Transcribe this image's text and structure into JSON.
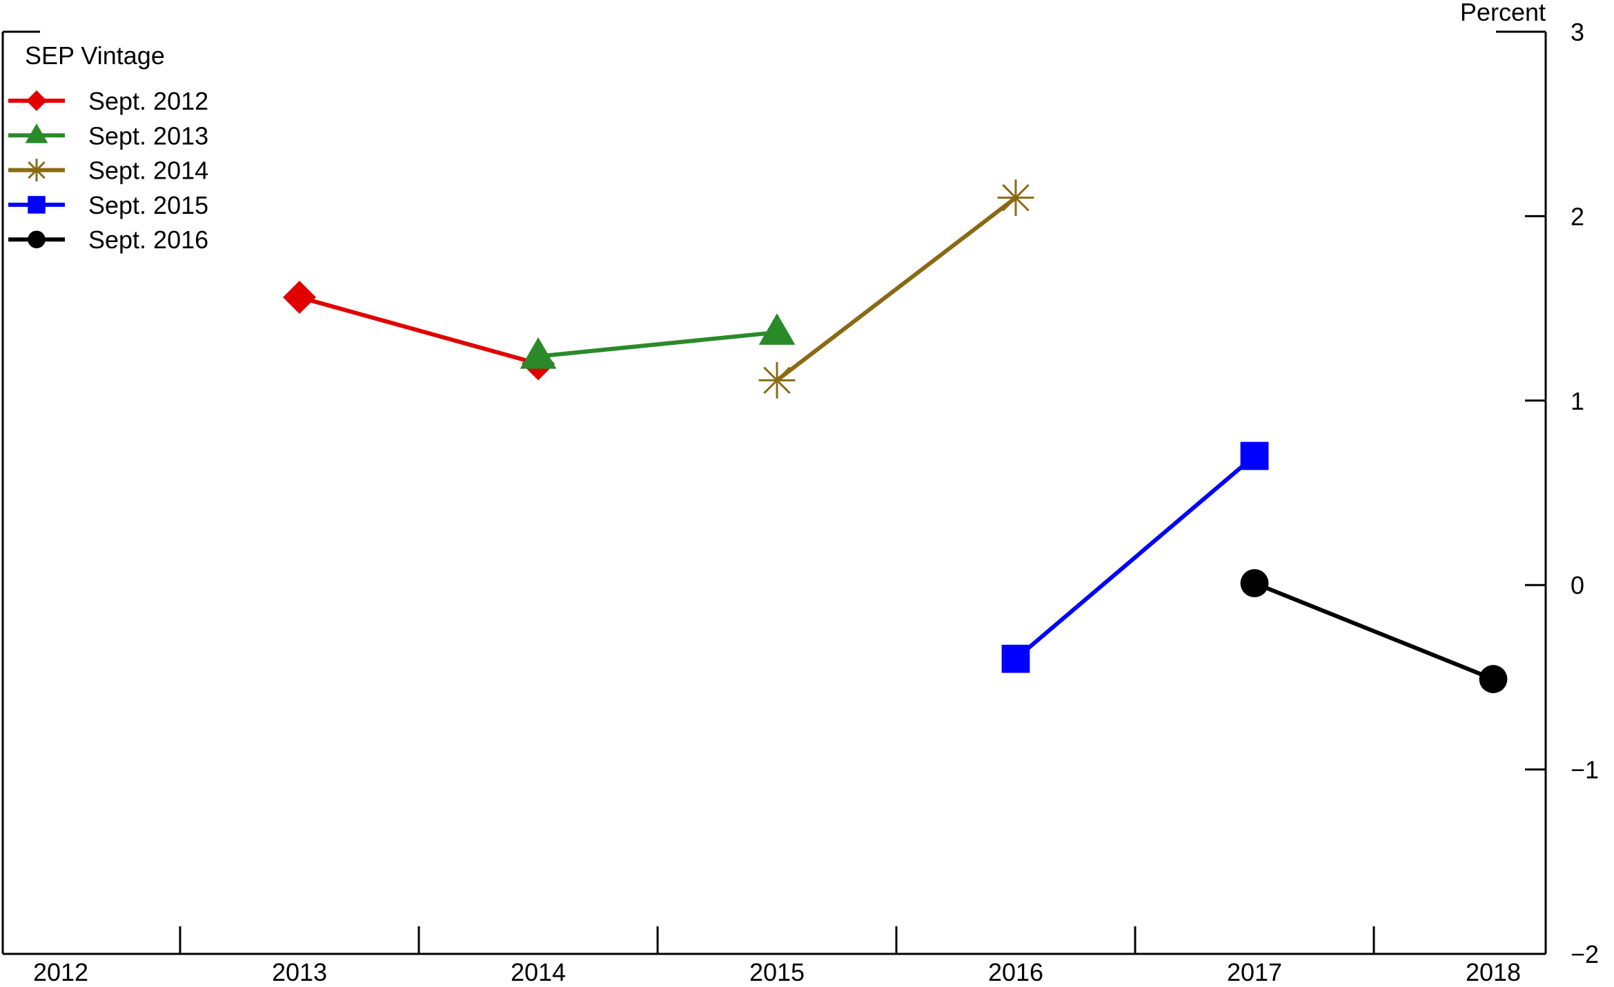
{
  "chart_data": {
    "type": "line",
    "unit_label": "Percent",
    "legend": {
      "title": "SEP Vintage",
      "placement": "top-left"
    },
    "x_categories": [
      "2012",
      "2013",
      "2014",
      "2015",
      "2016",
      "2017",
      "2018"
    ],
    "y_axis": {
      "position": "right",
      "ylim": [
        -2,
        3
      ],
      "ticks": [
        3,
        2,
        1,
        0,
        -1,
        -2
      ],
      "tick_labels": [
        "3",
        "2",
        "1",
        "0",
        "−1",
        "−2"
      ]
    },
    "grid": false,
    "series": [
      {
        "name": "Sept. 2012",
        "color": "#e00000",
        "marker": "diamond",
        "points": [
          {
            "x": "2013",
            "y": 1.56
          },
          {
            "x": "2014",
            "y": 1.2
          }
        ]
      },
      {
        "name": "Sept. 2013",
        "color": "#2a8a2a",
        "marker": "triangle",
        "points": [
          {
            "x": "2014",
            "y": 1.24
          },
          {
            "x": "2015",
            "y": 1.37
          }
        ]
      },
      {
        "name": "Sept. 2014",
        "color": "#8b6914",
        "marker": "asterisk",
        "points": [
          {
            "x": "2015",
            "y": 1.11
          },
          {
            "x": "2016",
            "y": 2.1
          }
        ]
      },
      {
        "name": "Sept. 2015",
        "color": "#0000ff",
        "marker": "square",
        "points": [
          {
            "x": "2016",
            "y": -0.4
          },
          {
            "x": "2017",
            "y": 0.7
          }
        ]
      },
      {
        "name": "Sept. 2016",
        "color": "#000000",
        "marker": "circle",
        "points": [
          {
            "x": "2017",
            "y": 0.01
          },
          {
            "x": "2018",
            "y": -0.51
          }
        ]
      }
    ]
  }
}
